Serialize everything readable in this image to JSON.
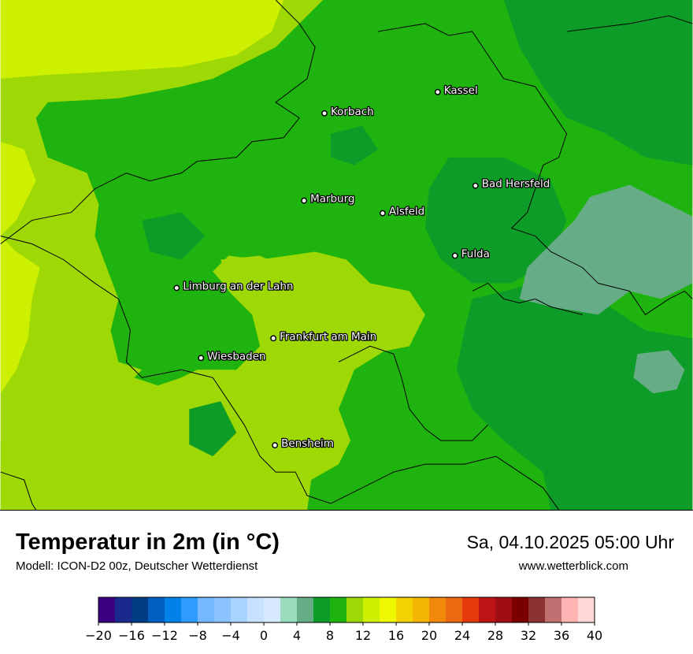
{
  "title": "Temperatur in 2m (in °C)",
  "model_info": "Modell: ICON-D2 00z, Deutscher Wetterdienst",
  "datetime": "Sa, 04.10.2025 05:00 Uhr",
  "website": "www.wetterblick.com",
  "colors": {
    "t4_6": "#66ad87",
    "t6_8": "#0d9c27",
    "t8_10": "#1fb30f",
    "t10_12": "#9ed906",
    "t12_14": "#ccf000",
    "border": "#000000"
  },
  "cities": [
    {
      "name": "Kassel"
    },
    {
      "name": "Korbach"
    },
    {
      "name": "Bad Hersfeld"
    },
    {
      "name": "Marburg"
    },
    {
      "name": "Alsfeld"
    },
    {
      "name": "Fulda"
    },
    {
      "name": "Limburg an der Lahn"
    },
    {
      "name": "Frankfurt am Main"
    },
    {
      "name": "Wiesbaden"
    },
    {
      "name": "Bensheim"
    }
  ],
  "legend": {
    "unit": "°C",
    "min": -20,
    "max": 40,
    "step": 2,
    "colors": [
      "#3b0082",
      "#1a2a8c",
      "#003c84",
      "#0060c0",
      "#0082e8",
      "#2e9cff",
      "#74b8ff",
      "#8cc4ff",
      "#a8d4ff",
      "#c6e2ff",
      "#d8eaff",
      "#99dcbe",
      "#66ad87",
      "#0d9c27",
      "#1fb30f",
      "#9ed906",
      "#ccf000",
      "#f0f800",
      "#f2d200",
      "#f4b600",
      "#f2880c",
      "#ee6a10",
      "#e53a0c",
      "#bc1414",
      "#a00e14",
      "#7a0000",
      "#8c3232",
      "#c07070",
      "#ffb4b4",
      "#ffd8d8"
    ],
    "tick_labels": [
      "−20",
      "−16",
      "−12",
      "−8",
      "−4",
      "0",
      "4",
      "8",
      "12",
      "16",
      "20",
      "24",
      "28",
      "32",
      "36",
      "40"
    ]
  }
}
